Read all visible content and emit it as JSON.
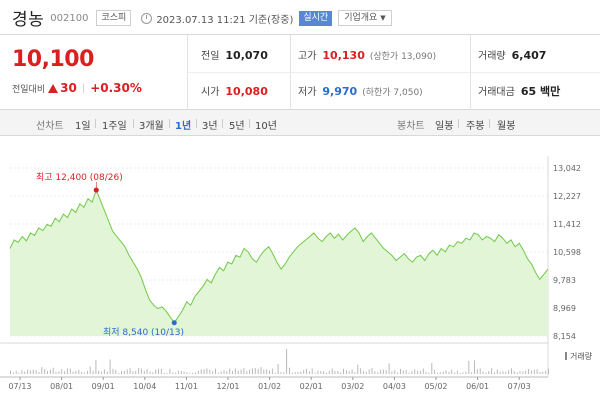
{
  "header": {
    "name": "경농",
    "code": "002100",
    "market": "코스피",
    "datetime": "2023.07.13 11:21 기준(장중)",
    "realtime": "실시간",
    "company_info": "기업개요"
  },
  "quote": {
    "price": "10,100",
    "change_label": "전일대비",
    "change": "30",
    "change_pct": "+0.30%",
    "prev_close_label": "전일",
    "prev_close": "10,070",
    "high_label": "고가",
    "high": "10,130",
    "upper_limit_text": "(상한가 13,090)",
    "volume_label": "거래량",
    "volume": "6,407",
    "open_label": "시가",
    "open": "10,080",
    "low_label": "저가",
    "low": "9,970",
    "lower_limit_text": "(하한가 7,050)",
    "value_label": "거래대금",
    "value": "65 백만"
  },
  "tabs": {
    "period_label": "선차트",
    "periods": [
      "1일",
      "1주일",
      "3개월",
      "1년",
      "3년",
      "5년",
      "10년"
    ],
    "active_period": "1년",
    "candle_label": "봉차트",
    "candles": [
      "일봉",
      "주봉",
      "월봉"
    ]
  },
  "colors": {
    "up": "#d91f1f",
    "down": "#2a6bd1",
    "line": "#71c94a",
    "fill": "#e2f5d6",
    "volume": "#b9b9b9"
  },
  "chart_data": {
    "type": "area",
    "y_ticks": [
      "13,042",
      "12,227",
      "11,412",
      "10,598",
      "9,783",
      "8,969",
      "8,154"
    ],
    "ylim": [
      8154,
      13042
    ],
    "x_tick_labels": [
      "07/13",
      "08/01",
      "09/01",
      "10/04",
      "11/01",
      "12/01",
      "01/02",
      "02/01",
      "03/02",
      "04/03",
      "05/02",
      "06/01",
      "07/03"
    ],
    "max_label": "최고 12,400 (08/26)",
    "min_label": "최저 8,540 (10/13)",
    "volume_legend": "거래량",
    "prices": [
      10700,
      10950,
      10880,
      11050,
      10920,
      11150,
      11080,
      11300,
      11220,
      11400,
      11350,
      11580,
      11480,
      11700,
      11600,
      11850,
      11750,
      12000,
      11900,
      12150,
      12050,
      12400,
      12100,
      11800,
      11500,
      11200,
      11050,
      10900,
      10750,
      10500,
      10300,
      10100,
      9850,
      9500,
      9200,
      9050,
      8950,
      9000,
      8880,
      8700,
      8540,
      8720,
      8900,
      9150,
      9050,
      9300,
      9450,
      9600,
      9800,
      9700,
      9950,
      10150,
      10050,
      10300,
      10250,
      10500,
      10450,
      10700,
      10600,
      10400,
      10300,
      10500,
      10650,
      10750,
      10550,
      10300,
      10100,
      10250,
      10450,
      10600,
      10750,
      10850,
      10950,
      11050,
      11150,
      11000,
      10900,
      11050,
      11150,
      11000,
      11120,
      10950,
      11080,
      11200,
      11300,
      11150,
      10900,
      11050,
      11150,
      11000,
      10850,
      10700,
      10600,
      10500,
      10350,
      10450,
      10550,
      10400,
      10300,
      10450,
      10500,
      10350,
      10550,
      10650,
      10500,
      10700,
      10600,
      10800,
      10750,
      10900,
      10850,
      11000,
      10950,
      11150,
      11100,
      10950,
      11050,
      11000,
      10900,
      11100,
      11000,
      10850,
      10950,
      10750,
      10850,
      10650,
      10400,
      10250,
      10000,
      9800,
      9950,
      10100
    ]
  }
}
